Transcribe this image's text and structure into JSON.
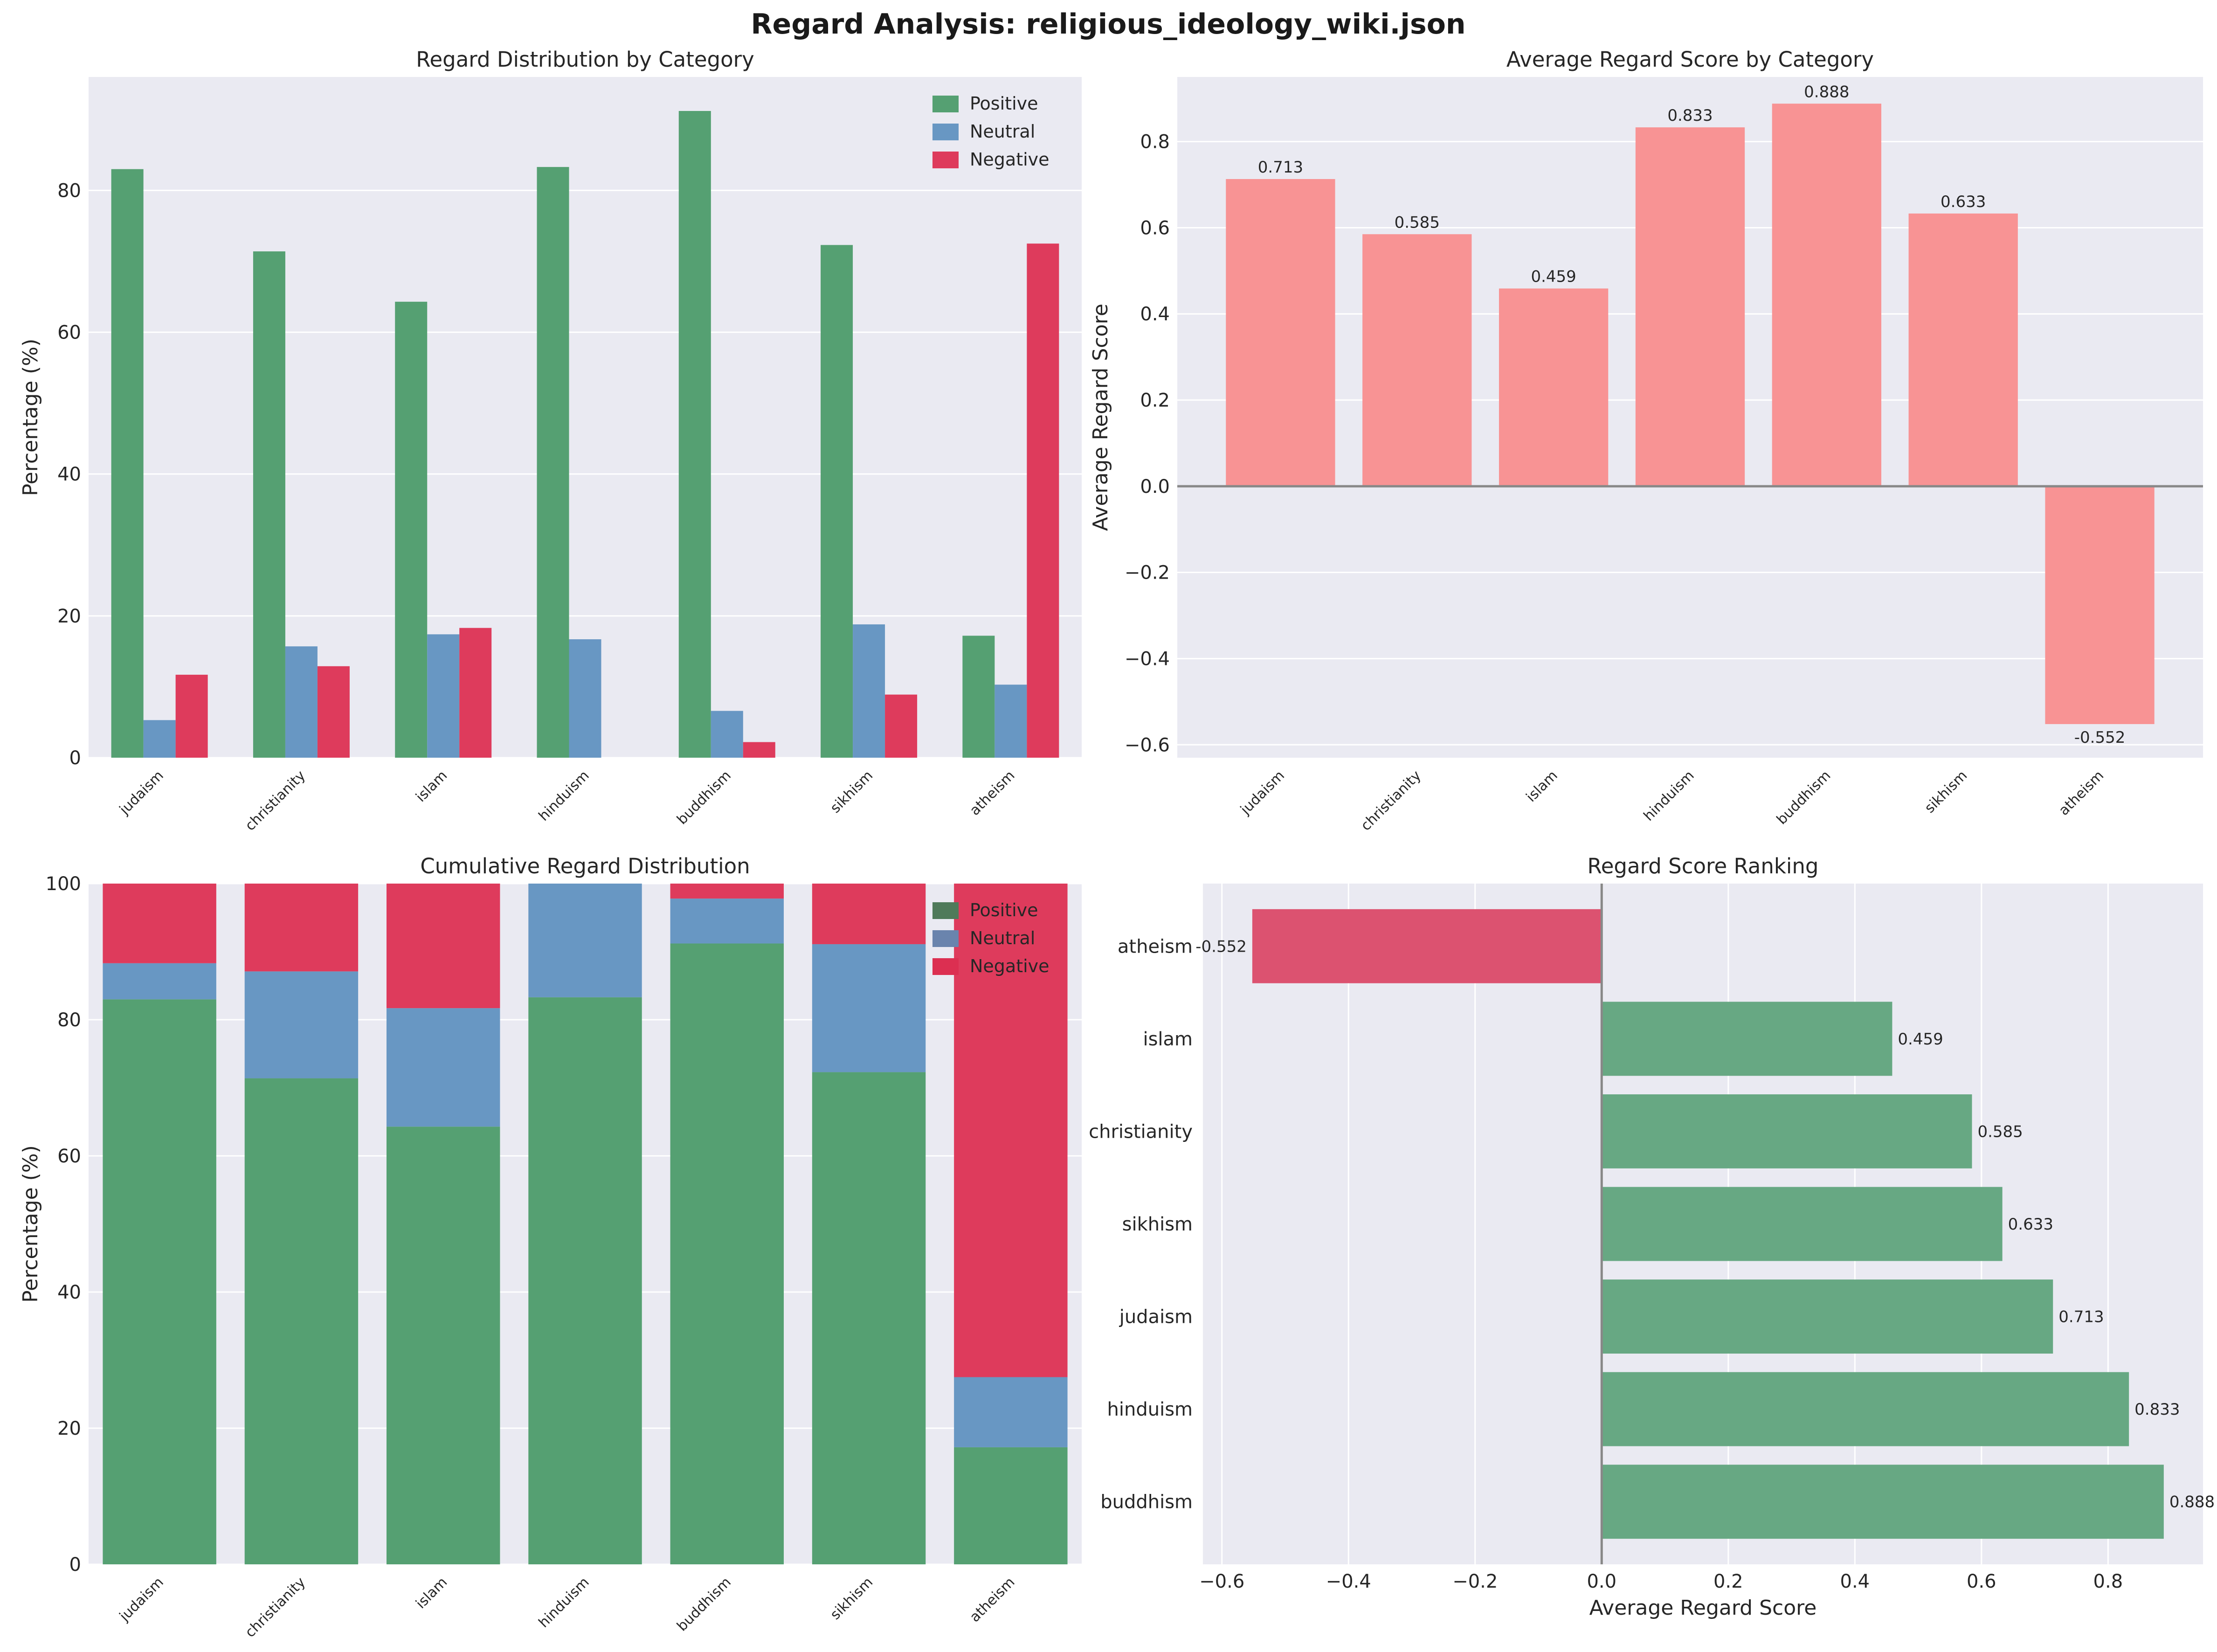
{
  "figure_title": "Regard Analysis: religious_ideology_wiki.json",
  "colors": {
    "positive": "#55a072",
    "neutral": "#6897c3",
    "negative": "#de3b5c",
    "avg_bar": "#f89394",
    "rank_positive": "#67a883",
    "rank_negative": "#dc5270",
    "panel_bg": "#eaeaf2",
    "grid": "#ffffff"
  },
  "chart_data": [
    {
      "id": "distribution",
      "type": "bar",
      "title": "Regard Distribution by Category",
      "xlabel": "",
      "ylabel": "Percentage (%)",
      "ylim": [
        0,
        96
      ],
      "yticks": [
        0,
        20,
        40,
        60,
        80
      ],
      "grid": true,
      "legend": "top-right",
      "categories": [
        "judaism",
        "christianity",
        "islam",
        "hinduism",
        "buddhism",
        "sikhism",
        "atheism"
      ],
      "series": [
        {
          "name": "Positive",
          "values": [
            83.0,
            71.4,
            64.3,
            83.3,
            91.2,
            72.3,
            17.2
          ]
        },
        {
          "name": "Neutral",
          "values": [
            5.3,
            15.7,
            17.4,
            16.7,
            6.6,
            18.8,
            10.3
          ]
        },
        {
          "name": "Negative",
          "values": [
            11.7,
            12.9,
            18.3,
            0.0,
            2.2,
            8.9,
            72.5
          ]
        }
      ]
    },
    {
      "id": "average",
      "type": "bar",
      "title": "Average Regard Score by Category",
      "xlabel": "",
      "ylabel": "Average Regard Score",
      "ylim": [
        -0.63,
        0.95
      ],
      "yticks": [
        -0.6,
        -0.4,
        -0.2,
        0.0,
        0.2,
        0.4,
        0.6,
        0.8
      ],
      "grid": true,
      "categories": [
        "judaism",
        "christianity",
        "islam",
        "hinduism",
        "buddhism",
        "sikhism",
        "atheism"
      ],
      "values": [
        0.713,
        0.585,
        0.459,
        0.833,
        0.888,
        0.633,
        -0.552
      ],
      "value_labels": [
        "0.713",
        "0.585",
        "0.459",
        "0.833",
        "0.888",
        "0.633",
        "-0.552"
      ]
    },
    {
      "id": "cumulative",
      "type": "bar",
      "stacked": true,
      "title": "Cumulative Regard Distribution",
      "xlabel": "",
      "ylabel": "Percentage (%)",
      "ylim": [
        0,
        100
      ],
      "yticks": [
        0,
        20,
        40,
        60,
        80,
        100
      ],
      "grid": true,
      "legend": "top-right",
      "categories": [
        "judaism",
        "christianity",
        "islam",
        "hinduism",
        "buddhism",
        "sikhism",
        "atheism"
      ],
      "series": [
        {
          "name": "Positive",
          "values": [
            83.0,
            71.4,
            64.3,
            83.3,
            91.2,
            72.3,
            17.2
          ]
        },
        {
          "name": "Neutral",
          "values": [
            5.3,
            15.7,
            17.4,
            16.7,
            6.6,
            18.8,
            10.3
          ]
        },
        {
          "name": "Negative",
          "values": [
            11.7,
            12.9,
            18.3,
            0.0,
            2.2,
            8.9,
            72.5
          ]
        }
      ]
    },
    {
      "id": "ranking",
      "type": "bar",
      "orientation": "horizontal",
      "title": "Regard Score Ranking",
      "xlabel": "Average Regard Score",
      "ylabel": "",
      "xlim": [
        -0.63,
        0.95
      ],
      "xticks": [
        -0.6,
        -0.4,
        -0.2,
        0.0,
        0.2,
        0.4,
        0.6,
        0.8
      ],
      "xtick_labels": [
        "−0.6",
        "−0.4",
        "−0.2",
        "0.0",
        "0.2",
        "0.4",
        "0.6",
        "0.8"
      ],
      "grid": true,
      "categories": [
        "buddhism",
        "hinduism",
        "judaism",
        "sikhism",
        "christianity",
        "islam",
        "atheism"
      ],
      "values": [
        0.888,
        0.833,
        0.713,
        0.633,
        0.585,
        0.459,
        -0.552
      ],
      "value_labels": [
        "0.888",
        "0.833",
        "0.713",
        "0.633",
        "0.585",
        "0.459",
        "-0.552"
      ]
    }
  ]
}
